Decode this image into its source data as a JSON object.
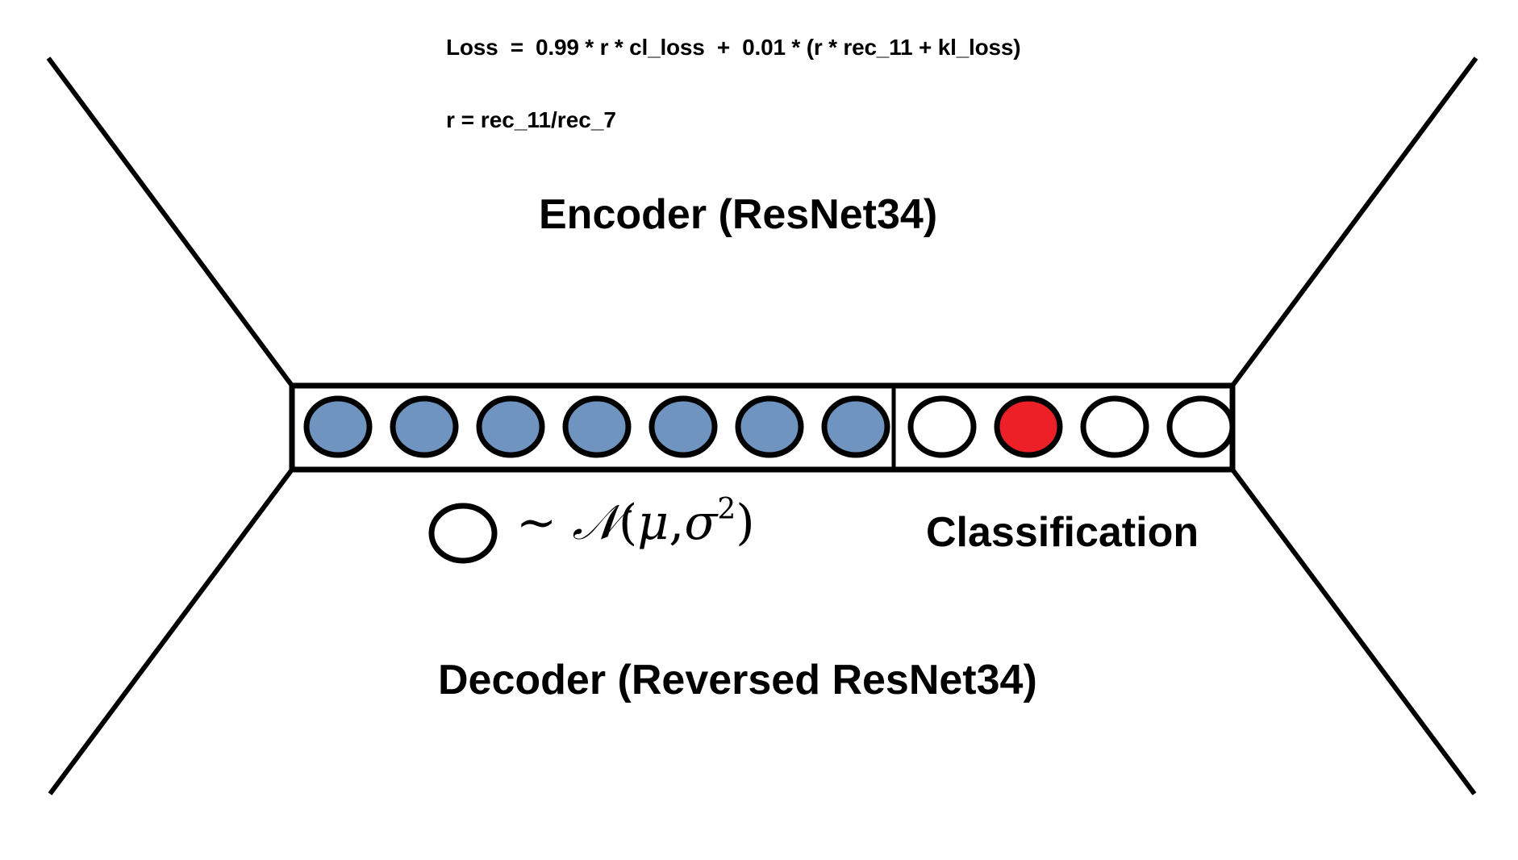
{
  "formulas": {
    "loss": "Loss  =  0.99 * r * cl_loss  +  0.01 * (r * rec_11 + kl_loss)",
    "ratio": "r = rec_11/rec_7"
  },
  "labels": {
    "encoder": "Encoder (ResNet34)",
    "decoder": "Decoder (Reversed ResNet34)",
    "classification": "Classification"
  },
  "distribution": {
    "tilde": "~",
    "family": "𝒩",
    "open_paren": "(",
    "mean": "μ",
    "comma": ", ",
    "variance": "σ",
    "exponent": "2",
    "close_paren": ")"
  },
  "latent_vector": {
    "latent_units": 7,
    "class_units": 4,
    "active_class_index": 1,
    "colors": {
      "latent_fill": "#7094c0",
      "class_fill": "#ffffff",
      "active_class_fill": "#ee2027",
      "stroke": "#000000"
    }
  }
}
